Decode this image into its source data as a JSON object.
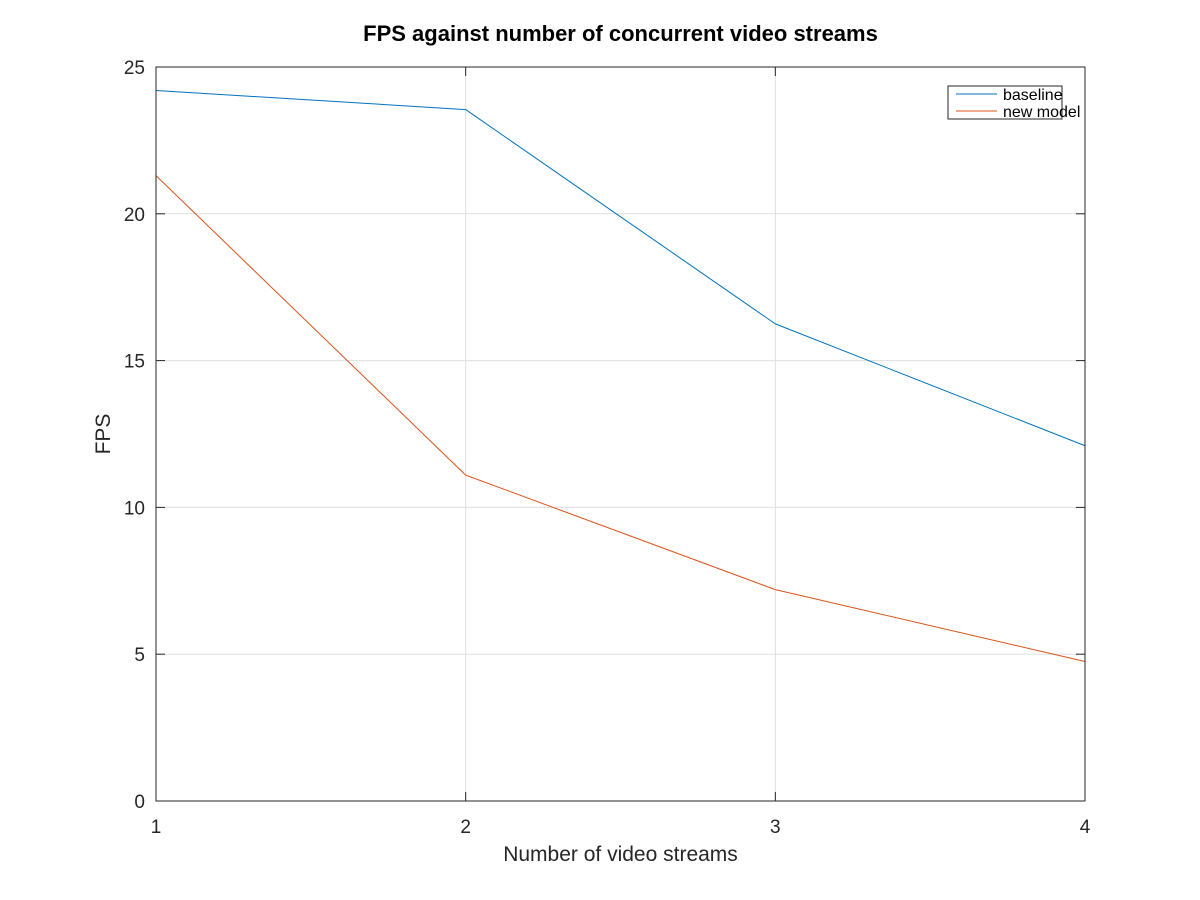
{
  "chart_data": {
    "type": "line",
    "title": "FPS against number of concurrent video streams",
    "xlabel": "Number of video streams",
    "ylabel": "FPS",
    "x": [
      1,
      2,
      3,
      4
    ],
    "xlim": [
      1,
      4
    ],
    "ylim": [
      0,
      25
    ],
    "xticks": [
      1,
      2,
      3,
      4
    ],
    "yticks": [
      0,
      5,
      10,
      15,
      20,
      25
    ],
    "grid": true,
    "legend_position": "top-right",
    "series": [
      {
        "name": "baseline",
        "values": [
          24.2,
          23.55,
          16.25,
          12.1
        ],
        "color": "#0072BD"
      },
      {
        "name": "new model",
        "values": [
          21.3,
          11.1,
          7.2,
          4.75
        ],
        "color": "#D95319"
      }
    ]
  }
}
